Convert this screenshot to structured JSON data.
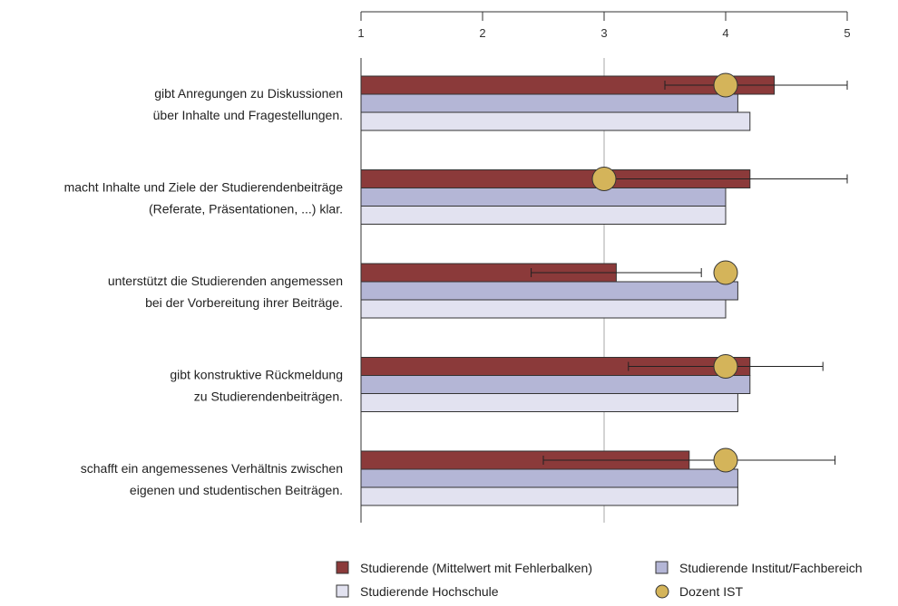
{
  "chart_data": {
    "type": "bar",
    "orientation": "horizontal",
    "xlim": [
      1,
      5
    ],
    "xticks": [
      1,
      2,
      3,
      4,
      5
    ],
    "x_axis_position": "top",
    "reference_line": 3,
    "categories": [
      [
        "gibt Anregungen zu Diskussionen",
        "über Inhalte und Fragestellungen."
      ],
      [
        "macht Inhalte und Ziele der Studierendenbeiträge",
        "(Referate, Präsentationen, ...) klar."
      ],
      [
        "unterstützt die Studierenden angemessen",
        "bei der Vorbereitung ihrer Beiträge."
      ],
      [
        "gibt konstruktive Rückmeldung",
        "zu Studierendenbeiträgen."
      ],
      [
        "schafft ein angemessenes Verhältnis zwischen",
        "eigenen und studentischen Beiträgen."
      ]
    ],
    "series": [
      {
        "name": "Studierende (Mittelwert mit Fehlerbalken)",
        "color": "#8b3a3a",
        "values": [
          4.4,
          4.2,
          3.1,
          4.2,
          3.7
        ],
        "error_low": [
          3.5,
          3.0,
          2.4,
          3.2,
          2.5
        ],
        "error_high": [
          5.0,
          5.0,
          3.8,
          4.8,
          4.9
        ]
      },
      {
        "name": "Studierende Institut/Fachbereich",
        "color": "#b4b6d6",
        "values": [
          4.1,
          4.0,
          4.1,
          4.2,
          4.1
        ]
      },
      {
        "name": "Studierende Hochschule",
        "color": "#e2e2f0",
        "values": [
          4.2,
          4.0,
          4.0,
          4.1,
          4.1
        ]
      }
    ],
    "markers": {
      "name": "Dozent IST",
      "color": "#d4b45a",
      "values": [
        4.0,
        3.0,
        4.0,
        4.0,
        4.0
      ]
    },
    "legend": {
      "placement": "bottom",
      "items": [
        {
          "label": "Studierende (Mittelwert mit Fehlerbalken)",
          "kind": "square",
          "color": "#8b3a3a"
        },
        {
          "label": "Studierende Institut/Fachbereich",
          "kind": "square",
          "color": "#b4b6d6"
        },
        {
          "label": "Studierende Hochschule",
          "kind": "square",
          "color": "#e2e2f0"
        },
        {
          "label": "Dozent IST",
          "kind": "circle",
          "color": "#d4b45a"
        }
      ]
    }
  }
}
